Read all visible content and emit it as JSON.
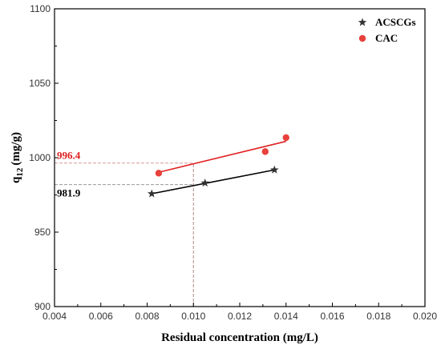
{
  "chart_data": {
    "type": "scatter",
    "xlabel": "Residual concentration  (mg/L)",
    "ylabel_main": "q",
    "ylabel_sub": "12",
    "ylabel_unit": "(mg/g)",
    "xlim": [
      0.004,
      0.02
    ],
    "ylim": [
      900,
      1100
    ],
    "x_ticks": [
      "0.004",
      "0.006",
      "0.008",
      "0.010",
      "0.012",
      "0.014",
      "0.016",
      "0.018",
      "0.020"
    ],
    "y_ticks": [
      "900",
      "950",
      "1000",
      "1050",
      "1100"
    ],
    "grid": false,
    "legend_position": "top-right",
    "series": [
      {
        "name": "ACSCGs",
        "marker": "star",
        "color": "#333333",
        "line_color": "#000000",
        "points": [
          {
            "x": 0.0082,
            "y": 975.8
          },
          {
            "x": 0.0105,
            "y": 983.0
          },
          {
            "x": 0.0135,
            "y": 991.8
          }
        ],
        "fit": {
          "x": [
            0.0082,
            0.0135
          ],
          "y": [
            975.8,
            991.8
          ]
        }
      },
      {
        "name": "CAC",
        "marker": "circle",
        "color": "#e8403c",
        "line_color": "#e02020",
        "points": [
          {
            "x": 0.0085,
            "y": 989.6
          },
          {
            "x": 0.0131,
            "y": 1004.1
          },
          {
            "x": 0.014,
            "y": 1013.5
          }
        ],
        "fit": {
          "x": [
            0.0085,
            0.014
          ],
          "y": [
            990.2,
            1011.0
          ]
        }
      }
    ],
    "reference": {
      "x": 0.01,
      "annotations": [
        {
          "text": "996.4",
          "y": 996.4,
          "color": "#e02020"
        },
        {
          "text": "981.9",
          "y": 981.9,
          "color": "#000000"
        }
      ]
    }
  }
}
